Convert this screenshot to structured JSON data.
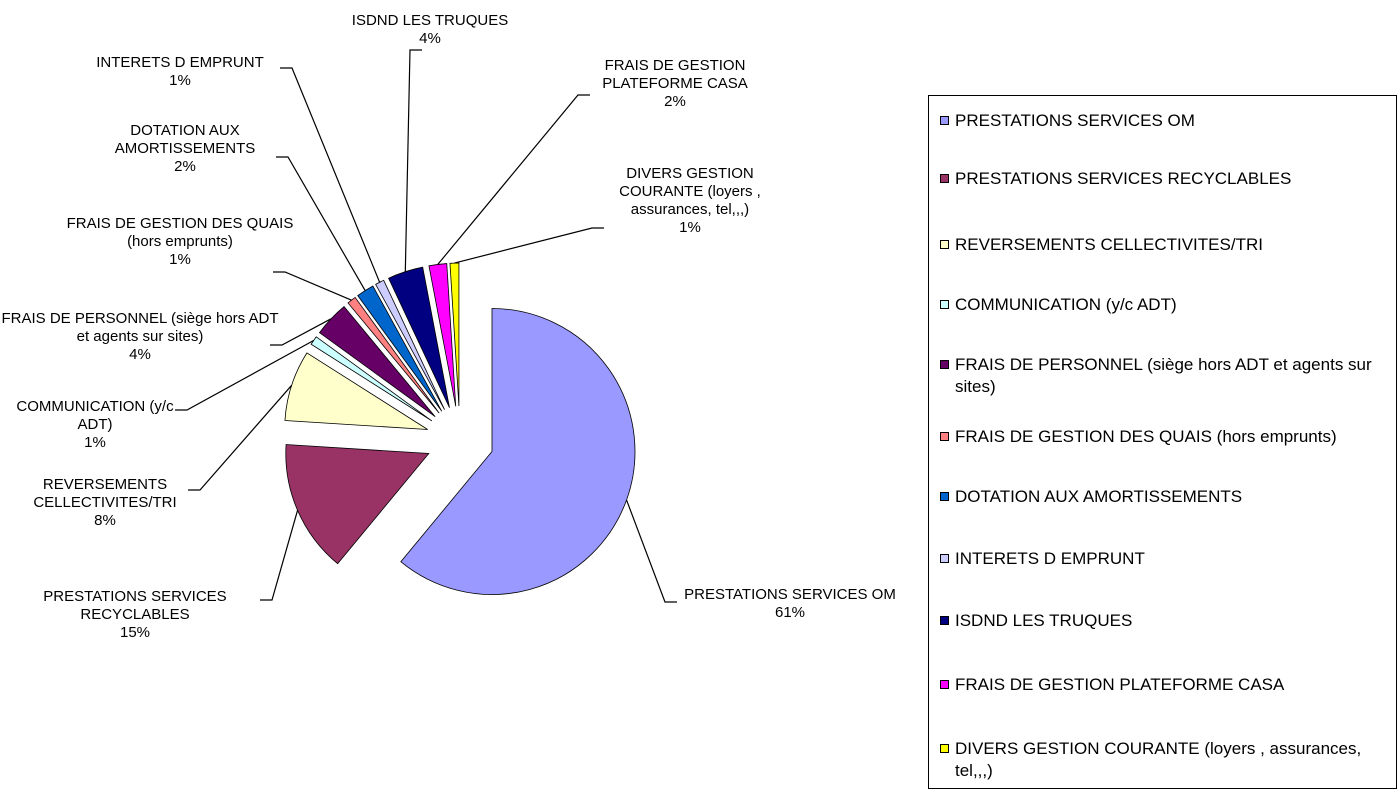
{
  "chart_data": {
    "type": "pie",
    "categories": [
      "PRESTATIONS SERVICES OM",
      "PRESTATIONS SERVICES RECYCLABLES",
      "REVERSEMENTS CELLECTIVITES/TRI",
      "COMMUNICATION (y/c ADT)",
      "FRAIS DE PERSONNEL (siège hors ADT et agents sur sites)",
      "FRAIS DE GESTION DES QUAIS (hors emprunts)",
      "DOTATION AUX AMORTISSEMENTS",
      "INTERETS D EMPRUNT",
      "ISDND LES TRUQUES",
      "FRAIS DE GESTION PLATEFORME CASA",
      "DIVERS GESTION COURANTE (loyers , assurances, tel,,,)"
    ],
    "values": [
      61,
      15,
      8,
      1,
      4,
      1,
      2,
      1,
      4,
      2,
      1
    ],
    "value_labels": [
      "61%",
      "15%",
      "8%",
      "1%",
      "4%",
      "1%",
      "2%",
      "1%",
      "4%",
      "2%",
      "1%"
    ],
    "colors": [
      "#9999ff",
      "#993366",
      "#ffffcc",
      "#ccffff",
      "#660066",
      "#ff8080",
      "#0066cc",
      "#ccccff",
      "#000080",
      "#ff00ff",
      "#ffff00"
    ],
    "legend": "right"
  }
}
